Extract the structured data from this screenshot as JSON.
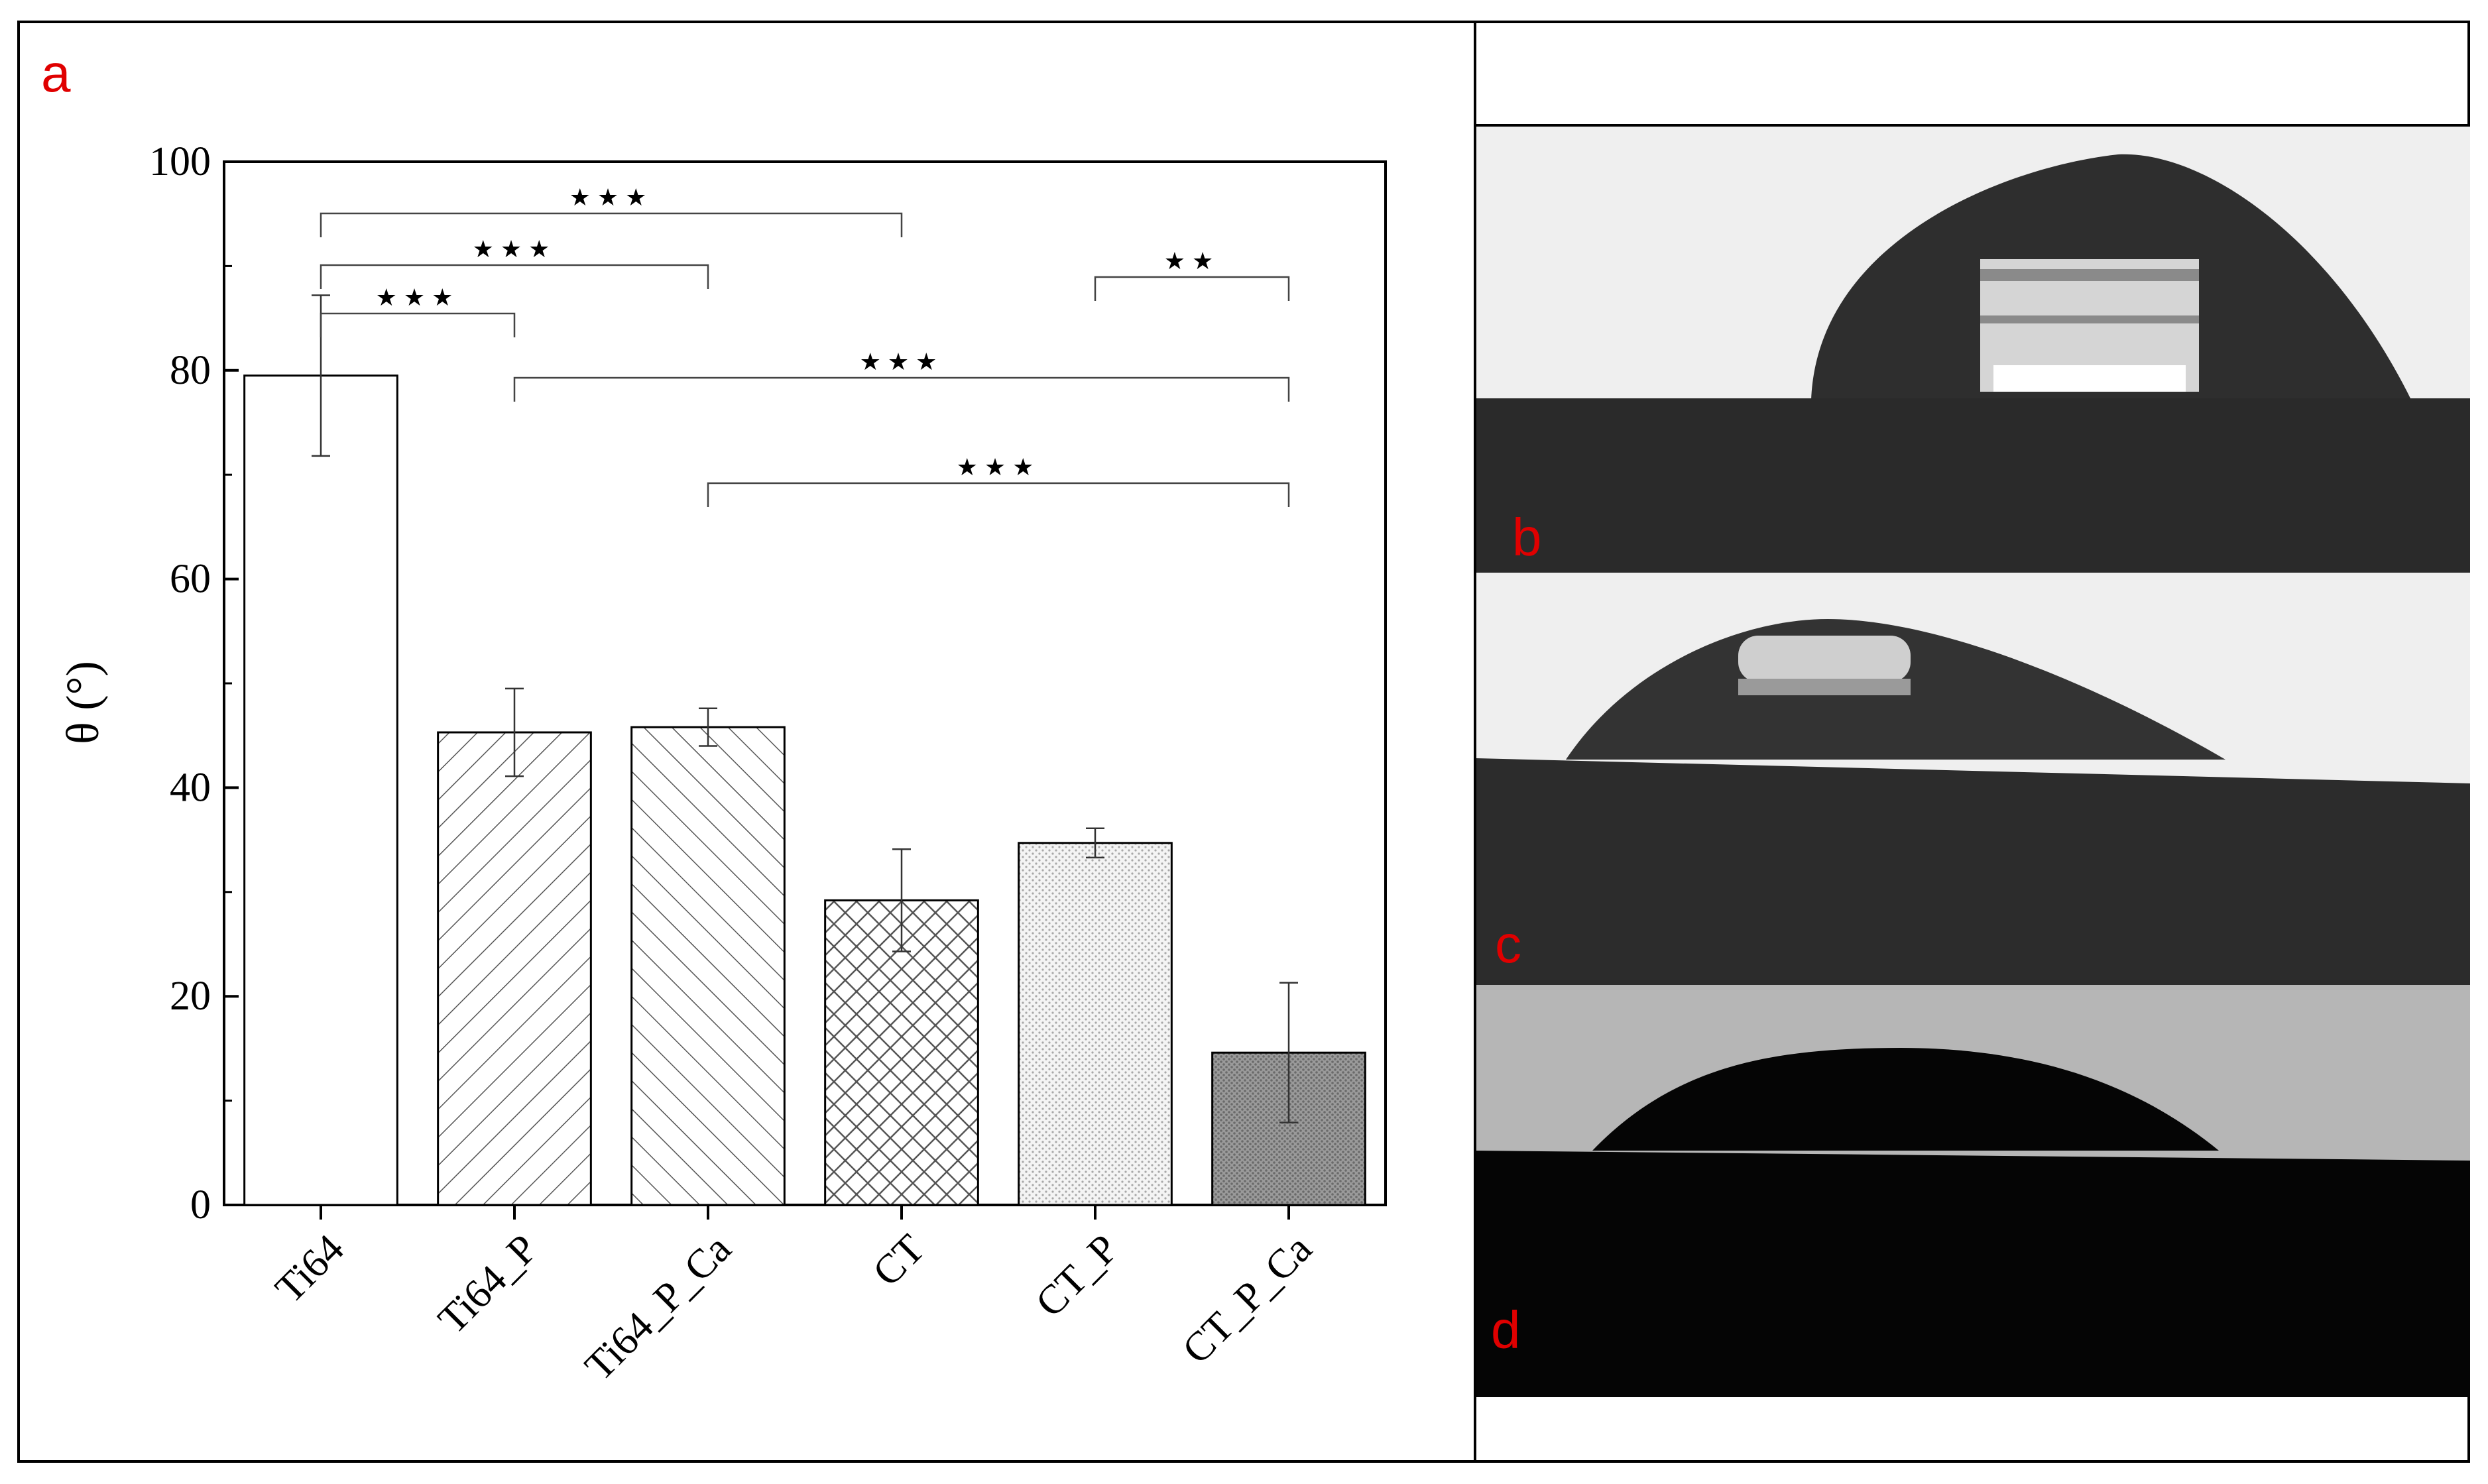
{
  "panels": {
    "a": "a",
    "b": "b",
    "c": "c",
    "d": "d"
  },
  "chart_data": {
    "type": "bar",
    "title": "",
    "xlabel": "",
    "ylabel": "θ (°)",
    "ylim": [
      0,
      100
    ],
    "yticks": [
      "0",
      "20",
      "40",
      "60",
      "80",
      "100"
    ],
    "categories": [
      "Ti64",
      "Ti64_P",
      "Ti64_P_Ca",
      "CT",
      "CT_P",
      "CT_P_Ca"
    ],
    "values": [
      79.5,
      45.3,
      45.8,
      29.2,
      34.7,
      14.6
    ],
    "errors": [
      7.7,
      4.2,
      1.8,
      4.9,
      1.4,
      6.7
    ],
    "fill_patterns": [
      "none",
      "diagonal-forward",
      "diagonal-back",
      "crosshatch",
      "light-dots",
      "dark-dots"
    ],
    "significance": [
      {
        "from": "Ti64",
        "to": "CT",
        "label": "★★★"
      },
      {
        "from": "Ti64",
        "to": "Ti64_P_Ca",
        "label": "★★★"
      },
      {
        "from": "Ti64",
        "to": "Ti64_P",
        "label": "★★★"
      },
      {
        "from": "CT_P",
        "to": "CT_P_Ca",
        "label": "★★"
      },
      {
        "from": "Ti64_P",
        "to": "CT_P_Ca",
        "label": "★★★"
      },
      {
        "from": "Ti64_P_Ca",
        "to": "CT_P_Ca",
        "label": "★★★"
      }
    ]
  }
}
